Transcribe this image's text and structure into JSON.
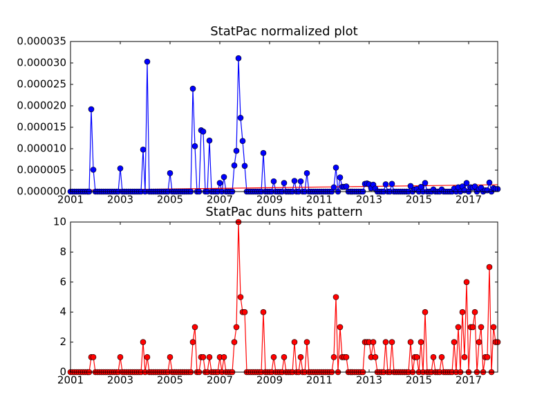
{
  "chart_data": [
    {
      "type": "line",
      "title": "StatPac normalized plot",
      "color": "#0000ff",
      "x": [
        2001,
        2001.083,
        2001.167,
        2001.25,
        2001.333,
        2001.417,
        2001.5,
        2001.583,
        2001.667,
        2001.75,
        2001.833,
        2001.917,
        2002,
        2002.083,
        2002.167,
        2002.25,
        2002.333,
        2002.417,
        2002.5,
        2002.583,
        2002.667,
        2002.75,
        2002.833,
        2002.917,
        2003,
        2003.083,
        2003.167,
        2003.25,
        2003.333,
        2003.417,
        2003.5,
        2003.583,
        2003.667,
        2003.75,
        2003.833,
        2003.917,
        2004,
        2004.083,
        2004.167,
        2004.25,
        2004.333,
        2004.417,
        2004.5,
        2004.583,
        2004.667,
        2004.75,
        2004.833,
        2004.917,
        2005,
        2005.083,
        2005.167,
        2005.25,
        2005.333,
        2005.417,
        2005.5,
        2005.583,
        2005.667,
        2005.75,
        2005.833,
        2005.917,
        2006,
        2006.083,
        2006.167,
        2006.25,
        2006.333,
        2006.417,
        2006.5,
        2006.583,
        2006.667,
        2006.75,
        2006.833,
        2006.917,
        2007,
        2007.083,
        2007.167,
        2007.25,
        2007.333,
        2007.417,
        2007.5,
        2007.583,
        2007.667,
        2007.75,
        2007.833,
        2007.917,
        2008,
        2008.083,
        2008.167,
        2008.25,
        2008.333,
        2008.417,
        2008.5,
        2008.583,
        2008.667,
        2008.75,
        2008.833,
        2008.917,
        2009,
        2009.083,
        2009.167,
        2009.25,
        2009.333,
        2009.417,
        2009.5,
        2009.583,
        2009.667,
        2009.75,
        2009.833,
        2009.917,
        2010,
        2010.083,
        2010.167,
        2010.25,
        2010.333,
        2010.417,
        2010.5,
        2010.583,
        2010.667,
        2010.75,
        2010.833,
        2010.917,
        2011,
        2011.083,
        2011.167,
        2011.25,
        2011.333,
        2011.417,
        2011.5,
        2011.583,
        2011.667,
        2011.75,
        2011.833,
        2011.917,
        2012,
        2012.083,
        2012.167,
        2012.25,
        2012.333,
        2012.417,
        2012.5,
        2012.583,
        2012.667,
        2012.75,
        2012.833,
        2012.917,
        2013,
        2013.083,
        2013.167,
        2013.25,
        2013.333,
        2013.417,
        2013.5,
        2013.583,
        2013.667,
        2013.75,
        2013.833,
        2013.917,
        2014,
        2014.083,
        2014.167,
        2014.25,
        2014.333,
        2014.417,
        2014.5,
        2014.583,
        2014.667,
        2014.75,
        2014.833,
        2014.917,
        2015,
        2015.083,
        2015.167,
        2015.25,
        2015.333,
        2015.417,
        2015.5,
        2015.583,
        2015.667,
        2015.75,
        2015.833,
        2015.917,
        2016,
        2016.083,
        2016.167,
        2016.25,
        2016.333,
        2016.417,
        2016.5,
        2016.583,
        2016.667,
        2016.75,
        2016.833,
        2016.917,
        2017,
        2017.083,
        2017.167,
        2017.25,
        2017.333,
        2017.417,
        2017.5,
        2017.583,
        2017.667,
        2017.75,
        2017.833,
        2017.917,
        2018,
        2018.083,
        2018.167
      ],
      "values": [
        0,
        0,
        0,
        0,
        0,
        0,
        0,
        0,
        0,
        0,
        1.92e-05,
        5.1e-06,
        0,
        0,
        0,
        0,
        0,
        0,
        0,
        0,
        0,
        0,
        0,
        0,
        5.4e-06,
        0,
        0,
        0,
        0,
        0,
        0,
        0,
        0,
        0,
        0,
        9.8e-06,
        0,
        3.03e-05,
        0,
        0,
        0,
        0,
        0,
        0,
        0,
        0,
        0,
        0,
        4.3e-06,
        0,
        0,
        0,
        0,
        0,
        0,
        0,
        0,
        0,
        0,
        2.4e-05,
        1.06e-05,
        0,
        0,
        1.43e-05,
        1.4e-05,
        0,
        0,
        1.19e-05,
        0,
        0,
        0,
        0,
        2e-06,
        0,
        3.4e-06,
        0,
        0,
        0,
        0,
        6.1e-06,
        9.5e-06,
        3.11e-05,
        1.72e-05,
        1.18e-05,
        6e-06,
        0,
        0,
        0,
        0,
        0,
        0,
        0,
        0,
        9e-06,
        0,
        0,
        0,
        0,
        2.4e-06,
        0,
        0,
        0,
        0,
        2e-06,
        0,
        0,
        0,
        0,
        2.5e-06,
        0,
        0,
        2.4e-06,
        0,
        0,
        4.3e-06,
        0,
        0,
        0,
        0,
        0,
        0,
        0,
        0,
        0,
        0,
        0,
        0,
        1e-06,
        5.6e-06,
        0,
        3.3e-06,
        1.1e-06,
        1.1e-06,
        1.2e-06,
        0,
        0,
        0,
        0,
        0,
        0,
        0,
        0,
        1.8e-06,
        1.9e-06,
        1.7e-06,
        8e-07,
        1.6e-06,
        7e-07,
        0,
        0,
        0,
        0,
        1.7e-06,
        0,
        0,
        1.8e-06,
        0,
        0,
        0,
        0,
        0,
        0,
        0,
        0,
        1.3e-06,
        0,
        5e-07,
        6e-07,
        0,
        1.1e-06,
        0,
        2e-06,
        0,
        0,
        0,
        5e-07,
        0,
        0,
        0,
        5e-07,
        0,
        0,
        0,
        0,
        0,
        7e-07,
        0,
        1e-06,
        0,
        1.2e-06,
        3e-07,
        2e-06,
        0,
        1e-06,
        9e-07,
        1.2e-06,
        0,
        6e-07,
        9e-07,
        0,
        3e-07,
        3e-07,
        2.1e-06,
        0,
        8e-07,
        6e-07,
        6e-07
      ],
      "trend": {
        "x": [
          2001,
          2018.167
        ],
        "values": [
          3e-07,
          1.6e-06
        ],
        "color": "#ff0000"
      },
      "xlim": [
        2001,
        2018.167
      ],
      "xticks": [
        2001,
        2003,
        2005,
        2007,
        2009,
        2011,
        2013,
        2015,
        2017
      ],
      "ylim": [
        0,
        3.5e-05
      ],
      "yticks": [
        {
          "value": 0,
          "label": "0.000000"
        },
        {
          "value": 5e-06,
          "label": "0.000005"
        },
        {
          "value": 1e-05,
          "label": "0.000010"
        },
        {
          "value": 1.5e-05,
          "label": "0.000015"
        },
        {
          "value": 2e-05,
          "label": "0.000020"
        },
        {
          "value": 2.5e-05,
          "label": "0.000025"
        },
        {
          "value": 3e-05,
          "label": "0.000030"
        },
        {
          "value": 3.5e-05,
          "label": "0.000035"
        }
      ]
    },
    {
      "type": "line",
      "title": "StatPac duns hits pattern",
      "color": "#ff0000",
      "x": [
        2001,
        2001.083,
        2001.167,
        2001.25,
        2001.333,
        2001.417,
        2001.5,
        2001.583,
        2001.667,
        2001.75,
        2001.833,
        2001.917,
        2002,
        2002.083,
        2002.167,
        2002.25,
        2002.333,
        2002.417,
        2002.5,
        2002.583,
        2002.667,
        2002.75,
        2002.833,
        2002.917,
        2003,
        2003.083,
        2003.167,
        2003.25,
        2003.333,
        2003.417,
        2003.5,
        2003.583,
        2003.667,
        2003.75,
        2003.833,
        2003.917,
        2004,
        2004.083,
        2004.167,
        2004.25,
        2004.333,
        2004.417,
        2004.5,
        2004.583,
        2004.667,
        2004.75,
        2004.833,
        2004.917,
        2005,
        2005.083,
        2005.167,
        2005.25,
        2005.333,
        2005.417,
        2005.5,
        2005.583,
        2005.667,
        2005.75,
        2005.833,
        2005.917,
        2006,
        2006.083,
        2006.167,
        2006.25,
        2006.333,
        2006.417,
        2006.5,
        2006.583,
        2006.667,
        2006.75,
        2006.833,
        2006.917,
        2007,
        2007.083,
        2007.167,
        2007.25,
        2007.333,
        2007.417,
        2007.5,
        2007.583,
        2007.667,
        2007.75,
        2007.833,
        2007.917,
        2008,
        2008.083,
        2008.167,
        2008.25,
        2008.333,
        2008.417,
        2008.5,
        2008.583,
        2008.667,
        2008.75,
        2008.833,
        2008.917,
        2009,
        2009.083,
        2009.167,
        2009.25,
        2009.333,
        2009.417,
        2009.5,
        2009.583,
        2009.667,
        2009.75,
        2009.833,
        2009.917,
        2010,
        2010.083,
        2010.167,
        2010.25,
        2010.333,
        2010.417,
        2010.5,
        2010.583,
        2010.667,
        2010.75,
        2010.833,
        2010.917,
        2011,
        2011.083,
        2011.167,
        2011.25,
        2011.333,
        2011.417,
        2011.5,
        2011.583,
        2011.667,
        2011.75,
        2011.833,
        2011.917,
        2012,
        2012.083,
        2012.167,
        2012.25,
        2012.333,
        2012.417,
        2012.5,
        2012.583,
        2012.667,
        2012.75,
        2012.833,
        2012.917,
        2013,
        2013.083,
        2013.167,
        2013.25,
        2013.333,
        2013.417,
        2013.5,
        2013.583,
        2013.667,
        2013.75,
        2013.833,
        2013.917,
        2014,
        2014.083,
        2014.167,
        2014.25,
        2014.333,
        2014.417,
        2014.5,
        2014.583,
        2014.667,
        2014.75,
        2014.833,
        2014.917,
        2015,
        2015.083,
        2015.167,
        2015.25,
        2015.333,
        2015.417,
        2015.5,
        2015.583,
        2015.667,
        2015.75,
        2015.833,
        2015.917,
        2016,
        2016.083,
        2016.167,
        2016.25,
        2016.333,
        2016.417,
        2016.5,
        2016.583,
        2016.667,
        2016.75,
        2016.833,
        2016.917,
        2017,
        2017.083,
        2017.167,
        2017.25,
        2017.333,
        2017.417,
        2017.5,
        2017.583,
        2017.667,
        2017.75,
        2017.833,
        2017.917,
        2018,
        2018.083,
        2018.167
      ],
      "values": [
        0,
        0,
        0,
        0,
        0,
        0,
        0,
        0,
        0,
        0,
        1,
        1,
        0,
        0,
        0,
        0,
        0,
        0,
        0,
        0,
        0,
        0,
        0,
        0,
        1,
        0,
        0,
        0,
        0,
        0,
        0,
        0,
        0,
        0,
        0,
        2,
        0,
        1,
        0,
        0,
        0,
        0,
        0,
        0,
        0,
        0,
        0,
        0,
        1,
        0,
        0,
        0,
        0,
        0,
        0,
        0,
        0,
        0,
        0,
        2,
        3,
        0,
        0,
        1,
        1,
        0,
        0,
        1,
        0,
        0,
        0,
        0,
        1,
        0,
        1,
        0,
        0,
        0,
        0,
        2,
        3,
        10,
        5,
        4,
        4,
        0,
        0,
        0,
        0,
        0,
        0,
        0,
        0,
        4,
        0,
        0,
        0,
        0,
        1,
        0,
        0,
        0,
        0,
        1,
        0,
        0,
        0,
        0,
        2,
        0,
        0,
        1,
        0,
        0,
        2,
        0,
        0,
        0,
        0,
        0,
        0,
        0,
        0,
        0,
        0,
        0,
        0,
        1,
        5,
        0,
        3,
        1,
        1,
        1,
        0,
        0,
        0,
        0,
        0,
        0,
        0,
        0,
        2,
        2,
        2,
        1,
        2,
        1,
        0,
        0,
        0,
        0,
        2,
        0,
        0,
        2,
        0,
        0,
        0,
        0,
        0,
        0,
        0,
        0,
        2,
        0,
        1,
        1,
        0,
        2,
        0,
        4,
        0,
        0,
        0,
        1,
        0,
        0,
        0,
        1,
        0,
        0,
        0,
        0,
        0,
        2,
        0,
        3,
        0,
        4,
        1,
        6,
        0,
        3,
        3,
        4,
        0,
        2,
        3,
        0,
        1,
        1,
        7,
        0,
        3,
        2,
        2
      ],
      "xlim": [
        2001,
        2018.167
      ],
      "xticks": [
        2001,
        2003,
        2005,
        2007,
        2009,
        2011,
        2013,
        2015,
        2017
      ],
      "ylim": [
        0,
        10
      ],
      "yticks": [
        0,
        2,
        4,
        6,
        8,
        10
      ]
    }
  ]
}
